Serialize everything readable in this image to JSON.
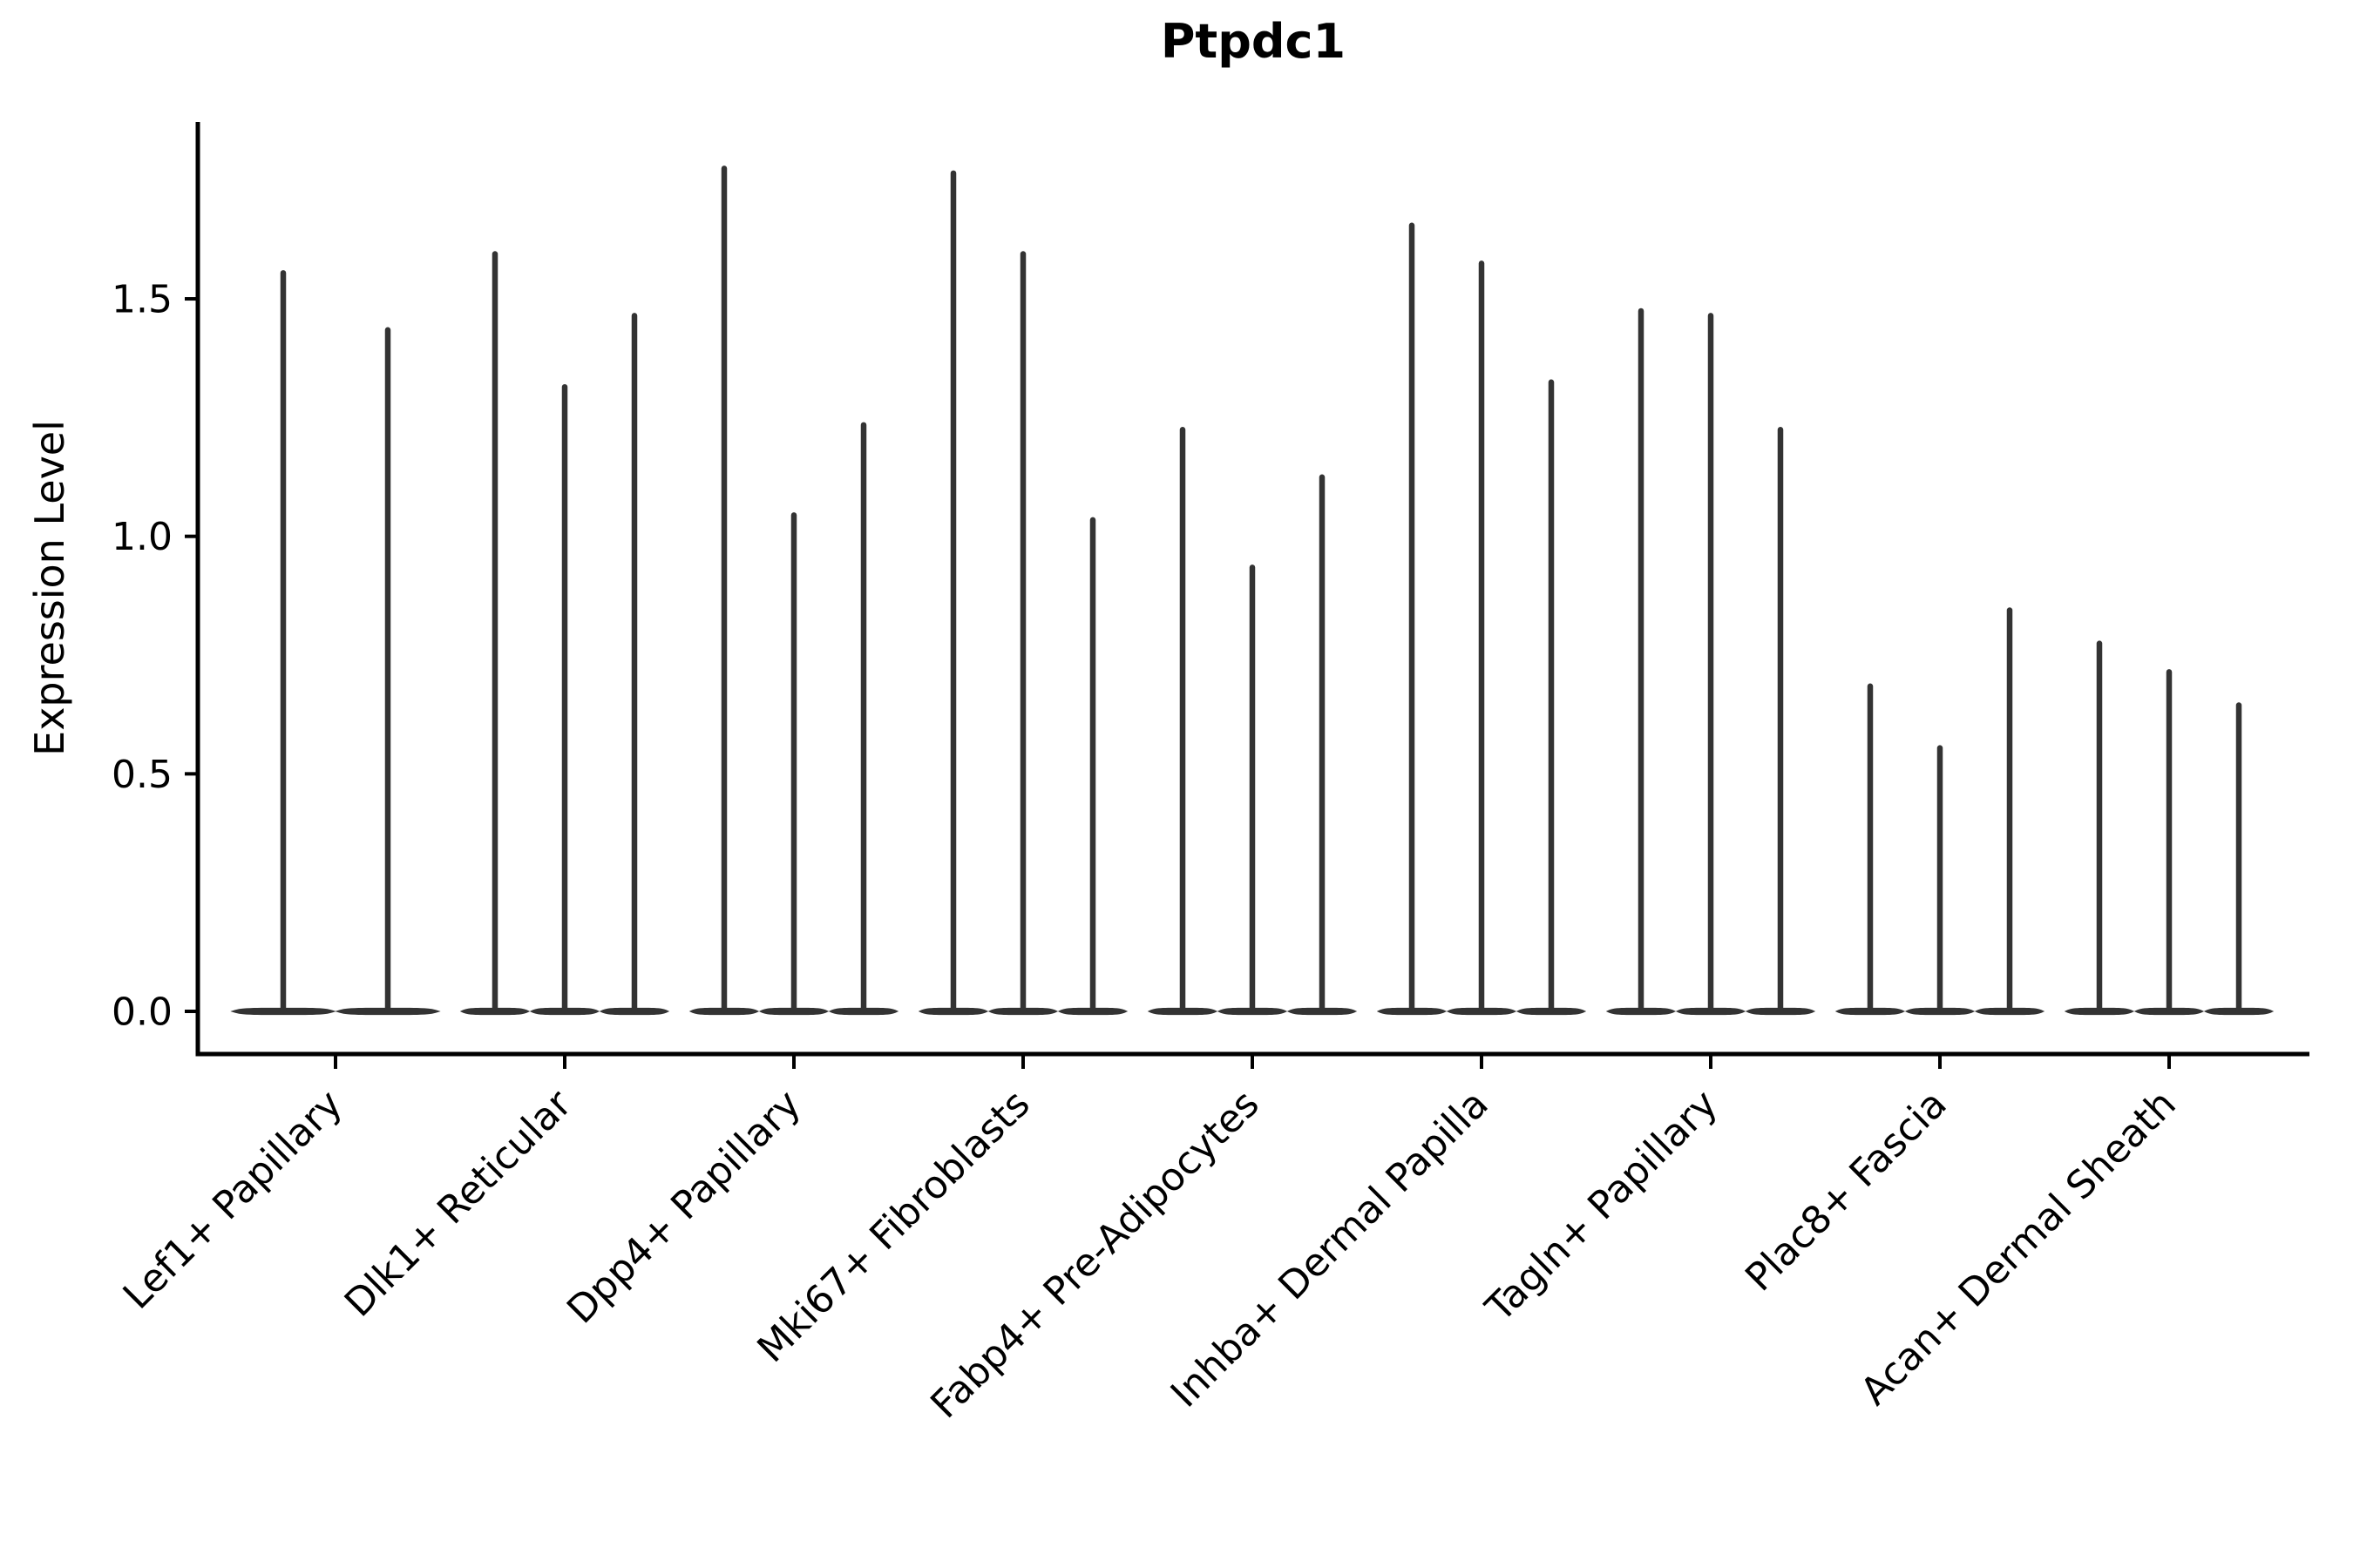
{
  "chart_data": {
    "type": "violin",
    "title": "Ptpdc1",
    "ylabel": "Expression Level",
    "xlabel": "",
    "categories": [
      "Lef1+ Papillary",
      "Dlk1+ Reticular",
      "Dpp4+ Papillary",
      "Mki67+ Fibroblasts",
      "Fabp4+ Pre-Adipocytes",
      "Inhba+ Dermal Papilla",
      "Tagln+ Papillary",
      "Plac8+ Fascia",
      "Acan+ Dermal Sheath"
    ],
    "violin_max_expression": [
      [
        1.56,
        1.44
      ],
      [
        1.6,
        1.32,
        1.47
      ],
      [
        1.78,
        1.05,
        1.24
      ],
      [
        1.77,
        1.6,
        1.04
      ],
      [
        1.23,
        0.94,
        1.13
      ],
      [
        1.66,
        1.58,
        1.33
      ],
      [
        1.48,
        1.47,
        1.23
      ],
      [
        0.69,
        0.56,
        0.85
      ],
      [
        0.78,
        0.72,
        0.65
      ]
    ],
    "violin_description": "Each violin is a needle: dense mass of zero-expression cells forming a flat lens at y=0 plus a thin spike reaching the listed maximum expression value.",
    "yticks": [
      0.0,
      0.5,
      1.0,
      1.5
    ],
    "ylim": [
      -0.09,
      1.87
    ],
    "grid": false,
    "legend_position": "none",
    "x_tick_rotation_degrees": 45,
    "colors": {
      "violin": "#333333",
      "axis": "#000000",
      "text": "#000000",
      "background": "#ffffff"
    }
  }
}
